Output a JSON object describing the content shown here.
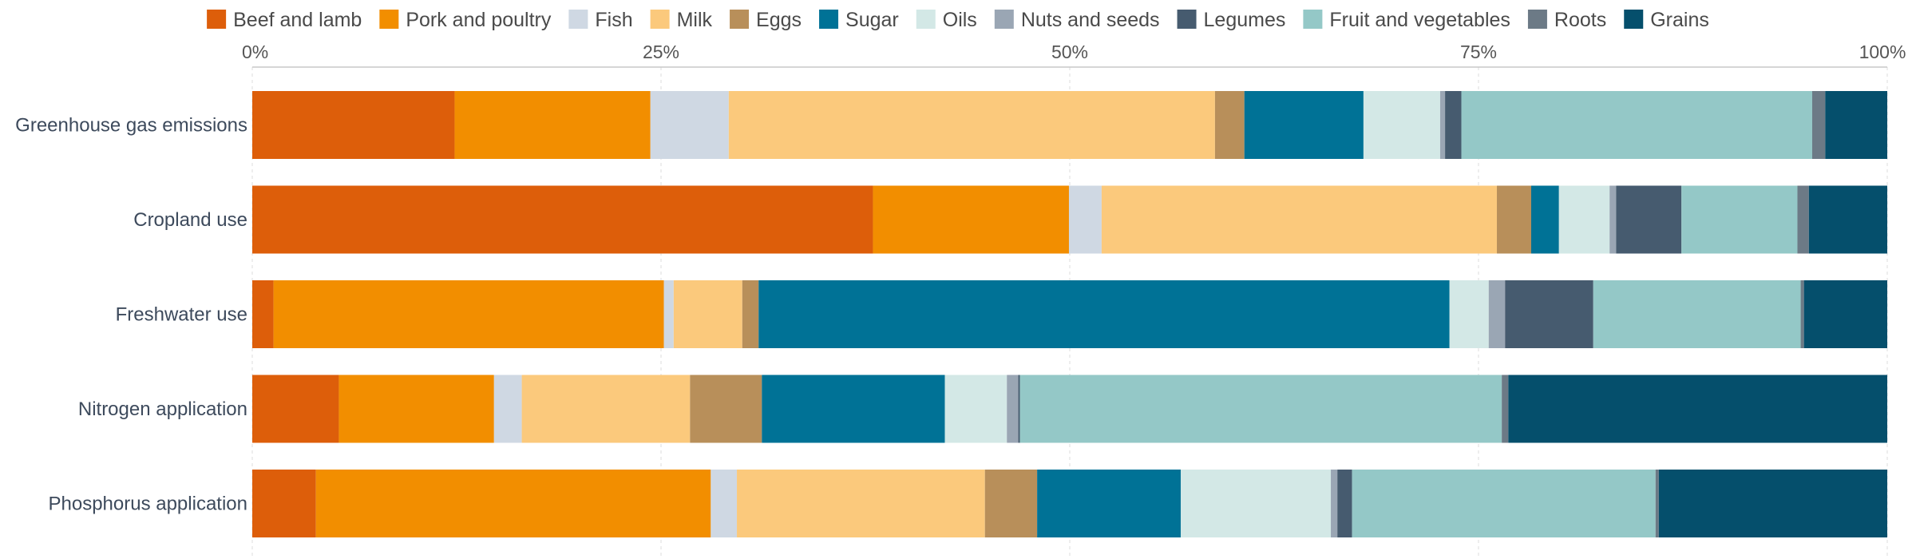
{
  "chart_data": {
    "type": "bar",
    "orientation": "horizontal",
    "stacked": true,
    "title": "",
    "xlabel": "",
    "ylabel": "",
    "xlim": [
      0,
      100
    ],
    "x_ticks": [
      "0%",
      "25%",
      "50%",
      "75%",
      "100%"
    ],
    "x_tick_values": [
      0,
      25,
      50,
      75,
      100
    ],
    "axis_position": "top",
    "grid": true,
    "legend_position": "top",
    "categories": [
      "Greenhouse gas emissions",
      "Cropland use",
      "Freshwater use",
      "Nitrogen application",
      "Phosphorus application"
    ],
    "series": [
      {
        "name": "Beef and lamb",
        "color": "#dd5e0a",
        "values": [
          12.4,
          38.0,
          1.3,
          5.3,
          3.9
        ]
      },
      {
        "name": "Pork and poultry",
        "color": "#f28e00",
        "values": [
          12.0,
          12.0,
          23.9,
          9.5,
          24.2
        ]
      },
      {
        "name": "Fish",
        "color": "#cfd8e3",
        "values": [
          4.8,
          2.0,
          0.6,
          1.7,
          1.6
        ]
      },
      {
        "name": "Milk",
        "color": "#fbc97c",
        "values": [
          29.8,
          24.2,
          4.2,
          10.3,
          15.2
        ]
      },
      {
        "name": "Eggs",
        "color": "#b88f5a",
        "values": [
          1.8,
          2.1,
          1.0,
          4.4,
          3.2
        ]
      },
      {
        "name": "Sugar",
        "color": "#007296",
        "values": [
          7.3,
          1.7,
          42.3,
          11.2,
          8.8
        ]
      },
      {
        "name": "Oils",
        "color": "#d3e8e6",
        "values": [
          4.7,
          3.1,
          2.4,
          3.8,
          9.2
        ]
      },
      {
        "name": "Nuts and seeds",
        "color": "#9aa6b4",
        "values": [
          0.3,
          0.4,
          1.0,
          0.7,
          0.4
        ]
      },
      {
        "name": "Legumes",
        "color": "#465b6f",
        "values": [
          1.0,
          4.0,
          5.4,
          0.1,
          0.9
        ]
      },
      {
        "name": "Fruit and vegetables",
        "color": "#94c8c7",
        "values": [
          21.5,
          7.1,
          12.7,
          29.5,
          18.6
        ]
      },
      {
        "name": "Roots",
        "color": "#6c7a86",
        "values": [
          0.8,
          0.7,
          0.2,
          0.4,
          0.2
        ]
      },
      {
        "name": "Grains",
        "color": "#054f6c",
        "values": [
          3.8,
          4.8,
          5.1,
          23.2,
          14.0
        ]
      }
    ]
  }
}
